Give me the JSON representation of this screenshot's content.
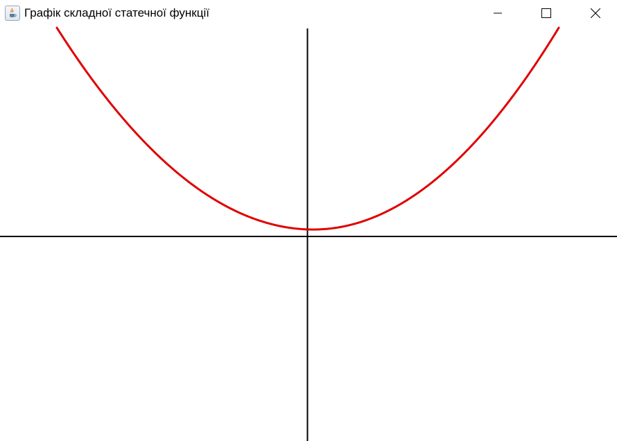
{
  "window": {
    "title": "Графік складної статечної функції",
    "icon": "java-cup-icon",
    "controls": {
      "minimize": "minimize-icon",
      "maximize": "maximize-icon",
      "close": "close-icon"
    }
  },
  "plot": {
    "curve_color": "#e00000",
    "axis_color": "#000000",
    "background": "#ffffff",
    "curve_shape": "parabola",
    "vertex_above_x_axis": true
  }
}
